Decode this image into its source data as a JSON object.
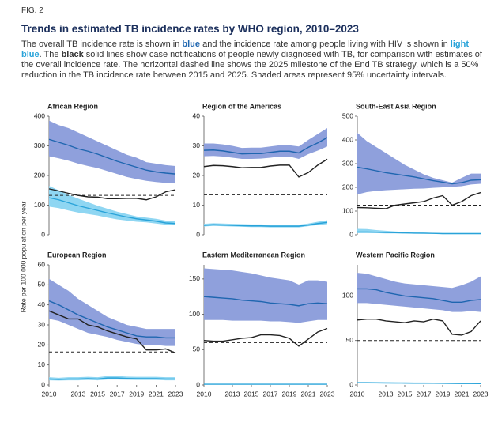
{
  "fig_label": "FIG. 2",
  "title": "Trends in estimated TB incidence rates by WHO region, 2010–2023",
  "description": [
    "The overall TB incidence rate is shown in ",
    "blue",
    " and the incidence rate among people living with HIV is shown in ",
    "light blue",
    ". The ",
    "black",
    " solid lines show case notifications of people newly diagnosed with TB, for comparison with estimates of the overall incidence rate. The horizontal dashed line shows the 2025 milestone of the End TB strategy, which is a 50% reduction in the TB incidence rate between 2015 and 2025. Shaded areas represent 95% uncertainty intervals."
  ],
  "y_axis_label": "Rate per 100 000 population per year",
  "chart_data": [
    {
      "type": "line",
      "title": "African Region",
      "x": [
        2010,
        2011,
        2012,
        2013,
        2014,
        2015,
        2016,
        2017,
        2018,
        2019,
        2020,
        2021,
        2022,
        2023
      ],
      "xlim": [
        2010,
        2023
      ],
      "ylim": [
        0,
        400
      ],
      "yticks": [
        0,
        100,
        200,
        300,
        400
      ],
      "milestone": 133,
      "series": [
        {
          "color": "#1f66b0",
          "band_color": "#8fa0dc",
          "values": [
            322,
            312,
            302,
            290,
            282,
            272,
            260,
            248,
            238,
            228,
            218,
            212,
            208,
            205
          ],
          "lower": [
            265,
            258,
            250,
            240,
            232,
            225,
            215,
            205,
            195,
            188,
            182,
            178,
            175,
            173
          ],
          "upper": [
            385,
            370,
            360,
            345,
            330,
            315,
            300,
            285,
            270,
            260,
            245,
            240,
            235,
            232
          ]
        },
        {
          "color": "#29a3d9",
          "band_color": "#8fd6f2",
          "values": [
            125,
            118,
            108,
            98,
            90,
            82,
            74,
            67,
            60,
            54,
            50,
            46,
            40,
            38
          ],
          "lower": [
            95,
            90,
            82,
            75,
            70,
            65,
            58,
            52,
            48,
            44,
            42,
            38,
            34,
            32
          ],
          "upper": [
            165,
            150,
            135,
            122,
            110,
            98,
            88,
            78,
            70,
            62,
            58,
            54,
            48,
            45
          ]
        },
        {
          "color": "#222222",
          "values": [
            155,
            148,
            140,
            133,
            128,
            127,
            122,
            122,
            123,
            123,
            118,
            128,
            145,
            152
          ]
        }
      ]
    },
    {
      "type": "line",
      "title": "Region of the Americas",
      "x": [
        2010,
        2011,
        2012,
        2013,
        2014,
        2015,
        2016,
        2017,
        2018,
        2019,
        2020,
        2021,
        2022,
        2023
      ],
      "xlim": [
        2010,
        2023
      ],
      "ylim": [
        0,
        40
      ],
      "yticks": [
        0,
        10,
        20,
        30,
        40
      ],
      "milestone": 13.5,
      "series": [
        {
          "color": "#1f66b0",
          "band_color": "#8fa0dc",
          "values": [
            28.5,
            28.6,
            28.3,
            27.8,
            27.3,
            27.4,
            27.4,
            27.8,
            28.2,
            28.2,
            27.6,
            29.5,
            31,
            32.8
          ],
          "lower": [
            26.5,
            26.6,
            26.4,
            26,
            25.6,
            25.6,
            25.7,
            26,
            26.4,
            26.4,
            25.6,
            27.2,
            28.4,
            29.8
          ],
          "upper": [
            30.8,
            30.8,
            30.5,
            30,
            29.3,
            29.4,
            29.4,
            29.8,
            30.2,
            30.2,
            29.8,
            32,
            34,
            36
          ]
        },
        {
          "color": "#29a3d9",
          "band_color": "#8fd6f2",
          "values": [
            3.2,
            3.4,
            3.3,
            3.2,
            3.1,
            3,
            3,
            2.9,
            2.9,
            2.9,
            2.9,
            3.3,
            3.8,
            4.2
          ],
          "lower": [
            2.8,
            3,
            2.9,
            2.8,
            2.7,
            2.6,
            2.6,
            2.5,
            2.5,
            2.5,
            2.5,
            2.9,
            3.3,
            3.6
          ],
          "upper": [
            3.7,
            3.9,
            3.8,
            3.7,
            3.6,
            3.5,
            3.5,
            3.4,
            3.4,
            3.4,
            3.4,
            3.8,
            4.4,
            4.9
          ]
        },
        {
          "color": "#222222",
          "values": [
            23,
            23.4,
            23.3,
            23,
            22.6,
            22.7,
            22.7,
            23.2,
            23.5,
            23.5,
            19.5,
            21,
            23.5,
            25.5
          ]
        }
      ]
    },
    {
      "type": "line",
      "title": "South-East Asia Region",
      "x": [
        2010,
        2011,
        2012,
        2013,
        2014,
        2015,
        2016,
        2017,
        2018,
        2019,
        2020,
        2021,
        2022,
        2023
      ],
      "xlim": [
        2010,
        2023
      ],
      "ylim": [
        0,
        500
      ],
      "yticks": [
        0,
        100,
        200,
        300,
        400,
        500
      ],
      "milestone": 125,
      "series": [
        {
          "color": "#1f66b0",
          "band_color": "#8fa0dc",
          "values": [
            285,
            278,
            270,
            262,
            256,
            250,
            244,
            236,
            228,
            222,
            215,
            220,
            230,
            232
          ],
          "lower": [
            170,
            180,
            185,
            188,
            190,
            192,
            194,
            195,
            198,
            200,
            202,
            205,
            212,
            215
          ],
          "upper": [
            430,
            395,
            370,
            345,
            320,
            295,
            275,
            255,
            240,
            230,
            220,
            240,
            258,
            258
          ]
        },
        {
          "color": "#29a3d9",
          "band_color": "#8fd6f2",
          "values": [
            12,
            12,
            11,
            10,
            9,
            8,
            7,
            7,
            6,
            5,
            5,
            5,
            5,
            5
          ],
          "lower": [
            7,
            7,
            7,
            6,
            6,
            5,
            5,
            4,
            4,
            3,
            3,
            3,
            3,
            3
          ],
          "upper": [
            25,
            24,
            20,
            17,
            14,
            12,
            10,
            9,
            8,
            7,
            7,
            7,
            7,
            7
          ]
        },
        {
          "color": "#222222",
          "values": [
            115,
            114,
            112,
            110,
            125,
            130,
            135,
            140,
            155,
            165,
            125,
            140,
            165,
            178
          ]
        }
      ]
    },
    {
      "type": "line",
      "title": "European Region",
      "x": [
        2010,
        2011,
        2012,
        2013,
        2014,
        2015,
        2016,
        2017,
        2018,
        2019,
        2020,
        2021,
        2022,
        2023
      ],
      "xlim": [
        2010,
        2023
      ],
      "xticks": [
        2010,
        2013,
        2015,
        2017,
        2019,
        2021,
        2023
      ],
      "ylim": [
        0,
        60
      ],
      "yticks": [
        0,
        10,
        20,
        30,
        40,
        50,
        60
      ],
      "milestone": 16.5,
      "series": [
        {
          "color": "#1f66b0",
          "band_color": "#8fa0dc",
          "values": [
            42,
            40,
            37.5,
            35,
            33,
            31,
            29,
            27.5,
            26,
            24.5,
            24,
            24,
            23.5,
            23.5
          ],
          "lower": [
            33,
            32,
            30,
            28,
            26,
            25,
            24,
            22.5,
            21.5,
            20.5,
            20,
            20,
            19.5,
            19.5
          ],
          "upper": [
            53,
            50,
            47,
            43,
            40,
            37,
            34,
            32,
            30,
            29,
            28,
            28,
            28,
            28
          ]
        },
        {
          "color": "#29a3d9",
          "band_color": "#8fd6f2",
          "values": [
            3,
            2.8,
            3,
            3,
            3.2,
            3,
            3.5,
            3.5,
            3.3,
            3.2,
            3.2,
            3.2,
            3,
            3
          ],
          "lower": [
            2.3,
            2.2,
            2.3,
            2.3,
            2.5,
            2.3,
            2.7,
            2.7,
            2.6,
            2.5,
            2.5,
            2.5,
            2.3,
            2.3
          ],
          "upper": [
            3.9,
            3.6,
            3.9,
            3.9,
            4.1,
            3.9,
            4.5,
            4.5,
            4.2,
            4.1,
            4.1,
            4.1,
            3.9,
            3.9
          ]
        },
        {
          "color": "#222222",
          "values": [
            37,
            35,
            33,
            33,
            30,
            29,
            27,
            25.5,
            24,
            23,
            17.5,
            17.5,
            18,
            16
          ]
        }
      ]
    },
    {
      "type": "line",
      "title": "Eastern Mediterranean Region",
      "x": [
        2010,
        2011,
        2012,
        2013,
        2014,
        2015,
        2016,
        2017,
        2018,
        2019,
        2020,
        2021,
        2022,
        2023
      ],
      "xlim": [
        2010,
        2023
      ],
      "xticks": [
        2010,
        2013,
        2015,
        2017,
        2019,
        2021,
        2023
      ],
      "ylim": [
        0,
        170
      ],
      "yticks": [
        0,
        50,
        100,
        150
      ],
      "milestone": 60,
      "series": [
        {
          "color": "#1f66b0",
          "band_color": "#8fa0dc",
          "values": [
            125,
            124,
            123,
            122,
            120,
            119,
            118,
            116,
            115,
            114,
            112,
            115,
            116,
            115
          ],
          "lower": [
            92,
            92,
            92,
            91,
            91,
            91,
            91,
            90,
            90,
            89,
            88,
            90,
            92,
            92
          ],
          "upper": [
            165,
            164,
            163,
            162,
            160,
            158,
            155,
            152,
            150,
            148,
            142,
            148,
            148,
            146
          ]
        },
        {
          "color": "#29a3d9",
          "band_color": "#8fd6f2",
          "values": [
            1,
            1,
            1,
            1,
            1,
            1,
            1,
            1,
            1,
            1,
            1,
            1,
            1,
            1
          ],
          "lower": [
            0.6,
            0.6,
            0.6,
            0.6,
            0.6,
            0.6,
            0.6,
            0.6,
            0.6,
            0.6,
            0.6,
            0.6,
            0.6,
            0.6
          ],
          "upper": [
            1.6,
            1.6,
            1.6,
            1.6,
            1.6,
            1.6,
            1.6,
            1.6,
            1.6,
            1.6,
            1.6,
            1.6,
            1.6,
            1.6
          ]
        },
        {
          "color": "#222222",
          "values": [
            63,
            62,
            62,
            64,
            66,
            67,
            71,
            71,
            70,
            66,
            55,
            65,
            75,
            80
          ]
        }
      ]
    },
    {
      "type": "line",
      "title": "Western Pacific Region",
      "x": [
        2010,
        2011,
        2012,
        2013,
        2014,
        2015,
        2016,
        2017,
        2018,
        2019,
        2020,
        2021,
        2022,
        2023
      ],
      "xlim": [
        2010,
        2023
      ],
      "xticks": [
        2010,
        2013,
        2015,
        2017,
        2019,
        2021,
        2023
      ],
      "ylim": [
        0,
        135
      ],
      "yticks": [
        0,
        50,
        100
      ],
      "milestone": 50,
      "series": [
        {
          "color": "#1f66b0",
          "band_color": "#8fa0dc",
          "values": [
            108,
            108,
            107,
            104,
            102,
            100,
            99,
            98,
            97,
            95,
            93,
            93,
            95,
            96
          ],
          "lower": [
            92,
            92,
            91,
            90,
            89,
            88,
            87,
            86,
            85,
            84,
            82,
            82,
            83,
            82
          ],
          "upper": [
            126,
            125,
            122,
            119,
            116,
            114,
            113,
            112,
            111,
            110,
            109,
            112,
            116,
            122
          ]
        },
        {
          "color": "#29a3d9",
          "band_color": "#8fd6f2",
          "values": [
            2.5,
            2.5,
            2.4,
            2.3,
            2.2,
            2.1,
            2,
            2,
            1.9,
            1.8,
            1.7,
            1.6,
            1.6,
            1.5
          ],
          "lower": [
            1.8,
            1.8,
            1.7,
            1.6,
            1.6,
            1.5,
            1.4,
            1.4,
            1.3,
            1.3,
            1.2,
            1.1,
            1.1,
            1
          ],
          "upper": [
            3.3,
            3.3,
            3.2,
            3.1,
            3,
            2.9,
            2.8,
            2.8,
            2.7,
            2.5,
            2.4,
            2.3,
            2.3,
            2.2
          ]
        },
        {
          "color": "#222222",
          "values": [
            73,
            74,
            74,
            72,
            71,
            70,
            72,
            71,
            74,
            72,
            57,
            56,
            60,
            72
          ]
        }
      ]
    }
  ]
}
